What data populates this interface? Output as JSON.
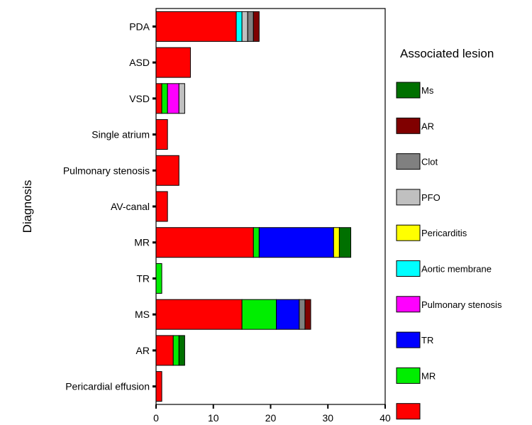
{
  "chart_data": {
    "type": "bar",
    "orientation": "horizontal",
    "stacked": true,
    "title": "",
    "xlabel": "",
    "ylabel": "Diagnosis",
    "xlim": [
      0,
      40
    ],
    "xticks": [
      0,
      10,
      20,
      30,
      40
    ],
    "grid": false,
    "legend_title": "Associated lesion",
    "legend_position": "right",
    "categories": [
      "PDA",
      "ASD",
      "VSD",
      "Single atrium",
      "Pulmonary stenosis",
      "AV-canal",
      "MR",
      "TR",
      "MS",
      "AR",
      "Pericardial effusion"
    ],
    "series": [
      {
        "name": "",
        "color": "#ff0000",
        "values": [
          14,
          6,
          1,
          2,
          4,
          2,
          17,
          0,
          15,
          3,
          1
        ]
      },
      {
        "name": "MR",
        "color": "#00ee00",
        "values": [
          0,
          0,
          1,
          0,
          0,
          0,
          1,
          1,
          6,
          1,
          0
        ]
      },
      {
        "name": "TR",
        "color": "#0000ff",
        "values": [
          0,
          0,
          0,
          0,
          0,
          0,
          13,
          0,
          4,
          0,
          0
        ]
      },
      {
        "name": "Pulmonary stenosis",
        "color": "#ff00ff",
        "values": [
          0,
          0,
          2,
          0,
          0,
          0,
          0,
          0,
          0,
          0,
          0
        ]
      },
      {
        "name": "Aortic membrane",
        "color": "#00ffff",
        "values": [
          1,
          0,
          0,
          0,
          0,
          0,
          0,
          0,
          0,
          0,
          0
        ]
      },
      {
        "name": "Pericarditis",
        "color": "#ffff00",
        "values": [
          0,
          0,
          0,
          0,
          0,
          0,
          1,
          0,
          0,
          0,
          0
        ]
      },
      {
        "name": "PFO",
        "color": "#c0c0c0",
        "values": [
          1,
          0,
          1,
          0,
          0,
          0,
          0,
          0,
          0,
          0,
          0
        ]
      },
      {
        "name": "Clot",
        "color": "#808080",
        "values": [
          1,
          0,
          0,
          0,
          0,
          0,
          0,
          0,
          1,
          0,
          0
        ]
      },
      {
        "name": "AR",
        "color": "#800000",
        "values": [
          1,
          0,
          0,
          0,
          0,
          0,
          0,
          0,
          1,
          0,
          0
        ]
      },
      {
        "name": "Ms",
        "color": "#007000",
        "values": [
          0,
          0,
          0,
          0,
          0,
          0,
          2,
          0,
          0,
          1,
          0
        ]
      }
    ]
  }
}
